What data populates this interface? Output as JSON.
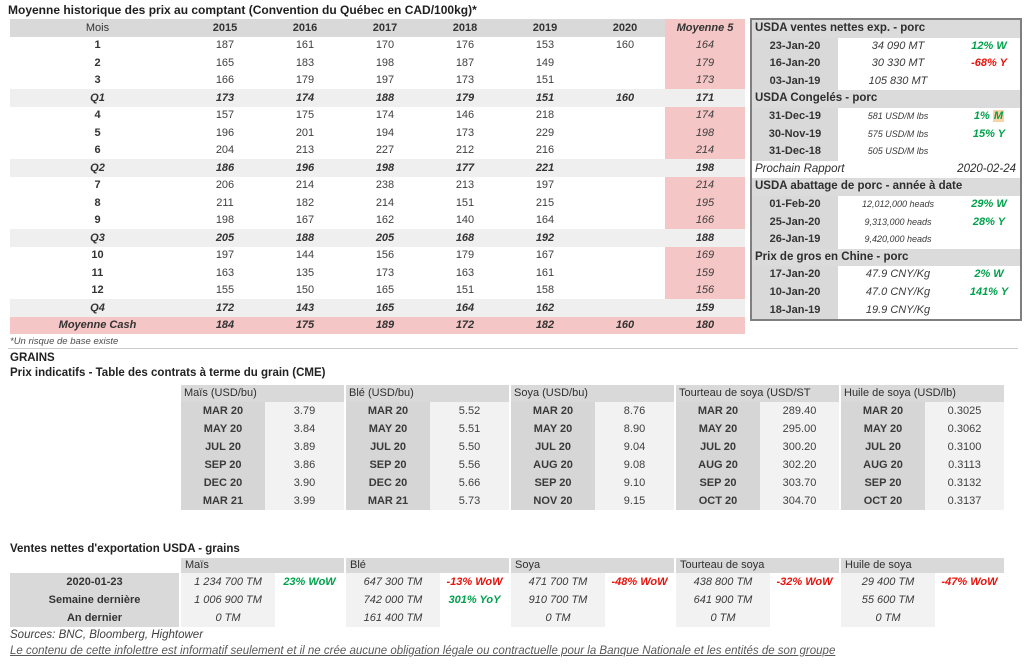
{
  "colors": {
    "pink": "#f4c6c6",
    "header_gray": "#d9d9d9",
    "row_gray": "#efefef",
    "cell_gray": "#f2f2f2",
    "green": "#00a14b",
    "red": "#e8130c",
    "peach": "#fbd2a4"
  },
  "spot": {
    "title": "Moyenne historique des prix au comptant (Convention du Québec en CAD/100kg)*",
    "columns": [
      "Mois",
      "2015",
      "2016",
      "2017",
      "2018",
      "2019",
      "2020",
      "Moyenne 5"
    ],
    "rows": [
      {
        "label": "1",
        "type": "month",
        "values": [
          "187",
          "161",
          "170",
          "176",
          "153",
          "160",
          "164"
        ]
      },
      {
        "label": "2",
        "type": "month",
        "values": [
          "165",
          "183",
          "198",
          "187",
          "149",
          "",
          "179"
        ]
      },
      {
        "label": "3",
        "type": "month",
        "values": [
          "166",
          "179",
          "197",
          "173",
          "151",
          "",
          "173"
        ]
      },
      {
        "label": "Q1",
        "type": "quarter",
        "values": [
          "173",
          "174",
          "188",
          "179",
          "151",
          "160",
          "171"
        ]
      },
      {
        "label": "4",
        "type": "month",
        "values": [
          "157",
          "175",
          "174",
          "146",
          "218",
          "",
          "174"
        ]
      },
      {
        "label": "5",
        "type": "month",
        "values": [
          "196",
          "201",
          "194",
          "173",
          "229",
          "",
          "198"
        ]
      },
      {
        "label": "6",
        "type": "month",
        "values": [
          "204",
          "213",
          "227",
          "212",
          "216",
          "",
          "214"
        ]
      },
      {
        "label": "Q2",
        "type": "quarter",
        "values": [
          "186",
          "196",
          "198",
          "177",
          "221",
          "",
          "198"
        ]
      },
      {
        "label": "7",
        "type": "month",
        "values": [
          "206",
          "214",
          "238",
          "213",
          "197",
          "",
          "214"
        ]
      },
      {
        "label": "8",
        "type": "month",
        "values": [
          "211",
          "182",
          "214",
          "151",
          "215",
          "",
          "195"
        ]
      },
      {
        "label": "9",
        "type": "month",
        "values": [
          "198",
          "167",
          "162",
          "140",
          "164",
          "",
          "166"
        ]
      },
      {
        "label": "Q3",
        "type": "quarter",
        "values": [
          "205",
          "188",
          "205",
          "168",
          "192",
          "",
          "188"
        ]
      },
      {
        "label": "10",
        "type": "month",
        "values": [
          "197",
          "144",
          "156",
          "179",
          "167",
          "",
          "169"
        ]
      },
      {
        "label": "11",
        "type": "month",
        "values": [
          "163",
          "135",
          "173",
          "163",
          "161",
          "",
          "159"
        ]
      },
      {
        "label": "12",
        "type": "month",
        "values": [
          "155",
          "150",
          "165",
          "151",
          "158",
          "",
          "156"
        ]
      },
      {
        "label": "Q4",
        "type": "quarter",
        "values": [
          "172",
          "143",
          "165",
          "164",
          "162",
          "",
          "159"
        ]
      },
      {
        "label": "Moyenne Cash",
        "type": "cash",
        "values": [
          "184",
          "175",
          "189",
          "172",
          "182",
          "160",
          "180"
        ]
      }
    ],
    "footnote": "*Un risque de base existe"
  },
  "usda": {
    "sections": [
      {
        "header": "USDA ventes nettes exp. - porc",
        "rows": [
          {
            "date": "23-Jan-20",
            "value": "34 090  MT",
            "pct": "12% W",
            "color": "green"
          },
          {
            "date": "16-Jan-20",
            "value": "30 330  MT",
            "pct": "-68% Y",
            "color": "red"
          },
          {
            "date": "03-Jan-19",
            "value": "105 830  MT",
            "pct": ""
          }
        ]
      },
      {
        "header": "USDA Congelés - porc",
        "rows": [
          {
            "date": "31-Dec-19",
            "value": "581 USD/M lbs",
            "small": true,
            "pct": "1% M",
            "color": "green",
            "hl_last": true
          },
          {
            "date": "30-Nov-19",
            "value": "575 USD/M lbs",
            "small": true,
            "pct": "15% Y",
            "color": "green"
          },
          {
            "date": "31-Dec-18",
            "value": "505 USD/M lbs",
            "small": true,
            "pct": ""
          }
        ]
      },
      {
        "report_label": "Prochain Rapport",
        "report_value": "2020-02-24"
      },
      {
        "header": "USDA abattage de porc - année à date",
        "rows": [
          {
            "date": "01-Feb-20",
            "value": "12,012,000 heads",
            "small": true,
            "pct": "29% W",
            "color": "green"
          },
          {
            "date": "25-Jan-20",
            "value": "9,313,000 heads",
            "small": true,
            "pct": "28% Y",
            "color": "green"
          },
          {
            "date": "26-Jan-19",
            "value": "9,420,000 heads",
            "small": true,
            "pct": ""
          }
        ]
      },
      {
        "header": "Prix de gros en Chine - porc",
        "rows": [
          {
            "date": "17-Jan-20",
            "value": "47.9 CNY/Kg",
            "pct": "2% W",
            "color": "green"
          },
          {
            "date": "10-Jan-20",
            "value": "47.0 CNY/Kg",
            "pct": "141% Y",
            "color": "green"
          },
          {
            "date": "18-Jan-19",
            "value": "19.9 CNY/Kg",
            "pct": ""
          }
        ]
      }
    ]
  },
  "grains": {
    "heading": "GRAINS",
    "subheading": "Prix indicatifs - Table des contrats à terme du grain (CME)",
    "futures_groups": [
      {
        "header": "Maïs (USD/bu)",
        "rows": [
          [
            "MAR 20",
            "3.79"
          ],
          [
            "MAY 20",
            "3.84"
          ],
          [
            "JUL 20",
            "3.89"
          ],
          [
            "SEP 20",
            "3.86"
          ],
          [
            "DEC 20",
            "3.90"
          ],
          [
            "MAR 21",
            "3.99"
          ]
        ]
      },
      {
        "header": "Blé (USD/bu)",
        "rows": [
          [
            "MAR 20",
            "5.52"
          ],
          [
            "MAY 20",
            "5.51"
          ],
          [
            "JUL 20",
            "5.50"
          ],
          [
            "SEP 20",
            "5.56"
          ],
          [
            "DEC 20",
            "5.66"
          ],
          [
            "MAR 21",
            "5.73"
          ]
        ]
      },
      {
        "header": "Soya (USD/bu)",
        "rows": [
          [
            "MAR 20",
            "8.76"
          ],
          [
            "MAY 20",
            "8.90"
          ],
          [
            "JUL 20",
            "9.04"
          ],
          [
            "AUG 20",
            "9.08"
          ],
          [
            "SEP 20",
            "9.10"
          ],
          [
            "NOV 20",
            "9.15"
          ]
        ]
      },
      {
        "header": "Tourteau de soya (USD/ST",
        "rows": [
          [
            "MAR 20",
            "289.40"
          ],
          [
            "MAY 20",
            "295.00"
          ],
          [
            "JUL 20",
            "300.20"
          ],
          [
            "AUG 20",
            "302.20"
          ],
          [
            "SEP 20",
            "303.70"
          ],
          [
            "OCT 20",
            "304.70"
          ]
        ]
      },
      {
        "header": "Huile de soya (USD/lb)",
        "rows": [
          [
            "MAR 20",
            "0.3025"
          ],
          [
            "MAY 20",
            "0.3062"
          ],
          [
            "JUL 20",
            "0.3100"
          ],
          [
            "AUG 20",
            "0.3113"
          ],
          [
            "SEP 20",
            "0.3132"
          ],
          [
            "OCT 20",
            "0.3137"
          ]
        ]
      }
    ]
  },
  "exports": {
    "title": "Ventes nettes d'exportation USDA - grains",
    "row_labels": [
      "2020-01-23",
      "Semaine dernière",
      "An dernier"
    ],
    "groups": [
      {
        "header": "Maïs",
        "rows": [
          {
            "qty": "1 234 700 TM",
            "pct": "23% WoW",
            "color": "green"
          },
          {
            "qty": "1 006 900 TM",
            "pct": ""
          },
          {
            "qty": "0 TM",
            "pct": ""
          }
        ]
      },
      {
        "header": "Blé",
        "rows": [
          {
            "qty": "647 300 TM",
            "pct": "-13% WoW",
            "color": "red"
          },
          {
            "qty": "742 000 TM",
            "pct": "301% YoY",
            "color": "green"
          },
          {
            "qty": "161 400 TM",
            "pct": ""
          }
        ]
      },
      {
        "header": "Soya",
        "rows": [
          {
            "qty": "471 700 TM",
            "pct": "-48% WoW",
            "color": "red"
          },
          {
            "qty": "910 700 TM",
            "pct": ""
          },
          {
            "qty": "0 TM",
            "pct": ""
          }
        ]
      },
      {
        "header": "Tourteau de soya",
        "rows": [
          {
            "qty": "438 800 TM",
            "pct": "-32% WoW",
            "color": "red"
          },
          {
            "qty": "641 900 TM",
            "pct": ""
          },
          {
            "qty": "0 TM",
            "pct": ""
          }
        ]
      },
      {
        "header": "Huile de soya",
        "rows": [
          {
            "qty": "29 400 TM",
            "pct": "-47% WoW",
            "color": "red"
          },
          {
            "qty": "55 600 TM",
            "pct": ""
          },
          {
            "qty": "0 TM",
            "pct": ""
          }
        ]
      }
    ]
  },
  "footer": {
    "sources": "Sources: BNC, Bloomberg, Hightower",
    "disclaimer": "Le contenu de cette infolettre est informatif seulement et il ne crée aucune obligation légale ou contractuelle pour la Banque Nationale et les entités de son groupe"
  }
}
